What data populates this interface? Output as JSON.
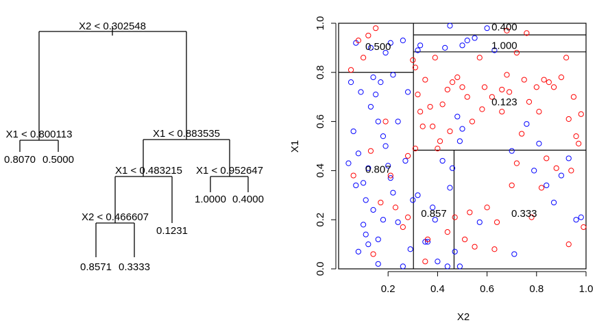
{
  "tree": {
    "splits": [
      {
        "id": "n1",
        "label": "X2 < 0.302548"
      },
      {
        "id": "n2",
        "label": "X1 < 0.800113"
      },
      {
        "id": "n3",
        "label": "X1 < 0.883535"
      },
      {
        "id": "n4",
        "label": "X1 < 0.483215"
      },
      {
        "id": "n5",
        "label": "X1 < 0.952647"
      },
      {
        "id": "n6",
        "label": "X2 < 0.466607"
      }
    ],
    "leaves": [
      {
        "id": "l1",
        "label": "0.8070"
      },
      {
        "id": "l2",
        "label": "0.5000"
      },
      {
        "id": "l3",
        "label": "0.8571"
      },
      {
        "id": "l4",
        "label": "0.3333"
      },
      {
        "id": "l5",
        "label": "0.1231"
      },
      {
        "id": "l6",
        "label": "1.0000"
      },
      {
        "id": "l7",
        "label": "0.4000"
      }
    ]
  },
  "chart_data": {
    "type": "scatter",
    "xlabel": "X2",
    "ylabel": "X1",
    "xlim": [
      0.0,
      1.0
    ],
    "ylim": [
      0.0,
      1.0
    ],
    "xticks": [
      "0.2",
      "0.4",
      "0.6",
      "0.8",
      "1.0"
    ],
    "xtick_values": [
      0.2,
      0.4,
      0.6,
      0.8,
      1.0
    ],
    "yticks": [
      "0.0",
      "0.2",
      "0.4",
      "0.6",
      "0.8",
      "1.0"
    ],
    "ytick_values": [
      0.0,
      0.2,
      0.4,
      0.6,
      0.8,
      1.0
    ],
    "colors": {
      "class0": "#0000ff",
      "class1": "#ff0000",
      "axis": "#000000"
    },
    "partitions": [
      {
        "orientation": "vertical",
        "x": 0.302548,
        "y_from": 0.0,
        "y_to": 1.0
      },
      {
        "orientation": "horizontal",
        "y": 0.800113,
        "x_from": 0.0,
        "x_to": 0.302548
      },
      {
        "orientation": "horizontal",
        "y": 0.883535,
        "x_from": 0.302548,
        "x_to": 1.0
      },
      {
        "orientation": "horizontal",
        "y": 0.952647,
        "x_from": 0.302548,
        "x_to": 1.0
      },
      {
        "orientation": "horizontal",
        "y": 0.483215,
        "x_from": 0.302548,
        "x_to": 1.0
      },
      {
        "orientation": "vertical",
        "x": 0.466607,
        "y_from": 0.0,
        "y_to": 0.483215
      }
    ],
    "region_labels": [
      {
        "text": "0.500",
        "x": 0.16,
        "y": 0.905
      },
      {
        "text": "0.807",
        "x": 0.16,
        "y": 0.405
      },
      {
        "text": "0.400",
        "x": 0.67,
        "y": 0.985
      },
      {
        "text": "1.000",
        "x": 0.67,
        "y": 0.91
      },
      {
        "text": "0.123",
        "x": 0.67,
        "y": 0.68
      },
      {
        "text": "0.857",
        "x": 0.385,
        "y": 0.225
      },
      {
        "text": "0.333",
        "x": 0.75,
        "y": 0.225
      }
    ],
    "series": [
      {
        "class": "class0",
        "points": [
          [
            0.04,
            0.43
          ],
          [
            0.05,
            0.76
          ],
          [
            0.06,
            0.56
          ],
          [
            0.07,
            0.34
          ],
          [
            0.07,
            0.92
          ],
          [
            0.08,
            0.07
          ],
          [
            0.09,
            0.72
          ],
          [
            0.1,
            0.18
          ],
          [
            0.1,
            0.35
          ],
          [
            0.11,
            0.28
          ],
          [
            0.12,
            0.41
          ],
          [
            0.12,
            0.1
          ],
          [
            0.13,
            0.66
          ],
          [
            0.14,
            0.78
          ],
          [
            0.15,
            0.71
          ],
          [
            0.16,
            0.12
          ],
          [
            0.16,
            0.6
          ],
          [
            0.17,
            0.76
          ],
          [
            0.18,
            0.2
          ],
          [
            0.19,
            0.88
          ],
          [
            0.19,
            0.5
          ],
          [
            0.2,
            0.42
          ],
          [
            0.21,
            0.37
          ],
          [
            0.22,
            0.79
          ],
          [
            0.24,
            0.19
          ],
          [
            0.26,
            0.01
          ],
          [
            0.27,
            0.44
          ],
          [
            0.28,
            0.72
          ],
          [
            0.29,
            0.08
          ],
          [
            0.3,
            0.28
          ],
          [
            0.08,
            0.47
          ],
          [
            0.11,
            0.14
          ],
          [
            0.14,
            0.24
          ],
          [
            0.18,
            0.54
          ],
          [
            0.21,
            0.92
          ],
          [
            0.24,
            0.6
          ],
          [
            0.26,
            0.93
          ],
          [
            0.13,
            0.9
          ],
          [
            0.16,
            0.02
          ],
          [
            0.22,
            0.31
          ],
          [
            0.32,
            0.89
          ],
          [
            0.32,
            0.3
          ],
          [
            0.33,
            0.91
          ],
          [
            0.36,
            0.11
          ],
          [
            0.38,
            0.25
          ],
          [
            0.39,
            0.2
          ],
          [
            0.4,
            0.03
          ],
          [
            0.42,
            0.44
          ],
          [
            0.43,
            0.9
          ],
          [
            0.44,
            0.01
          ],
          [
            0.45,
            0.99
          ],
          [
            0.45,
            0.33
          ],
          [
            0.46,
            0.41
          ],
          [
            0.48,
            0.62
          ],
          [
            0.49,
            0.01
          ],
          [
            0.49,
            0.52
          ],
          [
            0.5,
            0.57
          ],
          [
            0.5,
            0.91
          ],
          [
            0.52,
            0.93
          ],
          [
            0.55,
            0.94
          ],
          [
            0.57,
            0.19
          ],
          [
            0.6,
            0.98
          ],
          [
            0.63,
            0.89
          ],
          [
            0.7,
            0.48
          ],
          [
            0.71,
            0.06
          ],
          [
            0.76,
            0.59
          ],
          [
            0.79,
            0.4
          ],
          [
            0.81,
            0.51
          ],
          [
            0.84,
            0.34
          ],
          [
            0.87,
            0.27
          ],
          [
            0.9,
            0.38
          ],
          [
            0.93,
            0.45
          ],
          [
            0.96,
            0.2
          ],
          [
            0.98,
            0.21
          ],
          [
            0.35,
            0.11
          ],
          [
            0.47,
            0.07
          ]
        ]
      },
      {
        "class": "class1",
        "points": [
          [
            0.05,
            0.81
          ],
          [
            0.06,
            0.38
          ],
          [
            0.08,
            0.93
          ],
          [
            0.1,
            0.86
          ],
          [
            0.12,
            0.95
          ],
          [
            0.13,
            0.48
          ],
          [
            0.14,
            0.06
          ],
          [
            0.15,
            0.98
          ],
          [
            0.17,
            0.27
          ],
          [
            0.19,
            0.6
          ],
          [
            0.21,
            0.38
          ],
          [
            0.23,
            0.25
          ],
          [
            0.26,
            0.17
          ],
          [
            0.28,
            0.46
          ],
          [
            0.3,
            0.85
          ],
          [
            0.31,
            0.82
          ],
          [
            0.31,
            0.49
          ],
          [
            0.32,
            0.71
          ],
          [
            0.33,
            0.64
          ],
          [
            0.34,
            0.58
          ],
          [
            0.35,
            0.77
          ],
          [
            0.36,
            0.12
          ],
          [
            0.37,
            0.66
          ],
          [
            0.38,
            0.58
          ],
          [
            0.39,
            0.86
          ],
          [
            0.4,
            0.49
          ],
          [
            0.41,
            0.52
          ],
          [
            0.42,
            0.67
          ],
          [
            0.44,
            0.73
          ],
          [
            0.45,
            0.56
          ],
          [
            0.46,
            0.76
          ],
          [
            0.47,
            0.21
          ],
          [
            0.48,
            0.78
          ],
          [
            0.5,
            0.74
          ],
          [
            0.51,
            0.12
          ],
          [
            0.53,
            0.23
          ],
          [
            0.54,
            0.6
          ],
          [
            0.55,
            0.09
          ],
          [
            0.57,
            0.86
          ],
          [
            0.59,
            0.74
          ],
          [
            0.6,
            0.25
          ],
          [
            0.62,
            0.7
          ],
          [
            0.63,
            0.08
          ],
          [
            0.64,
            0.19
          ],
          [
            0.66,
            0.64
          ],
          [
            0.68,
            0.79
          ],
          [
            0.69,
            0.72
          ],
          [
            0.7,
            0.34
          ],
          [
            0.72,
            0.43
          ],
          [
            0.74,
            0.55
          ],
          [
            0.75,
            0.77
          ],
          [
            0.77,
            0.68
          ],
          [
            0.78,
            0.21
          ],
          [
            0.8,
            0.74
          ],
          [
            0.81,
            0.64
          ],
          [
            0.83,
            0.77
          ],
          [
            0.84,
            0.45
          ],
          [
            0.85,
            0.76
          ],
          [
            0.87,
            0.74
          ],
          [
            0.88,
            0.41
          ],
          [
            0.9,
            0.78
          ],
          [
            0.92,
            0.86
          ],
          [
            0.93,
            0.61
          ],
          [
            0.94,
            0.4
          ],
          [
            0.95,
            0.7
          ],
          [
            0.96,
            0.54
          ],
          [
            0.97,
            0.51
          ],
          [
            0.98,
            0.63
          ],
          [
            0.99,
            0.17
          ],
          [
            0.93,
            0.1
          ],
          [
            0.58,
            0.65
          ],
          [
            0.68,
            0.97
          ],
          [
            0.72,
            0.88
          ],
          [
            0.76,
            0.96
          ],
          [
            0.82,
            0.33
          ],
          [
            0.28,
            0.21
          ],
          [
            0.35,
            0.03
          ],
          [
            0.44,
            0.15
          ],
          [
            0.66,
            0.73
          ],
          [
            0.52,
            0.7
          ]
        ]
      }
    ]
  }
}
